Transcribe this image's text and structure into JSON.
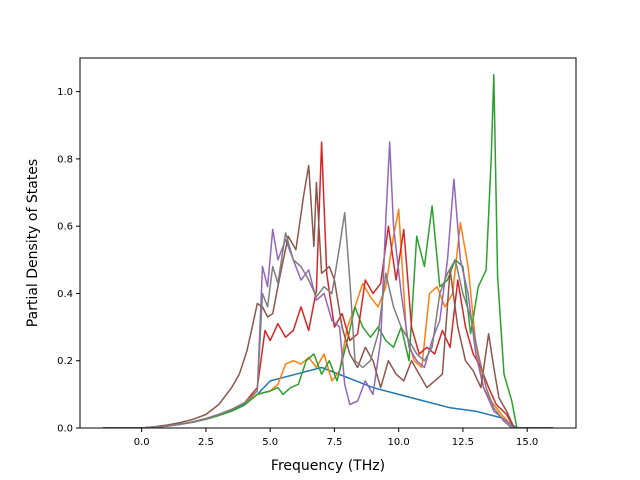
{
  "chart_data": {
    "type": "line",
    "xlabel": "Frequency (THz)",
    "ylabel": "Partial Density of States",
    "xlim": [
      -2.4,
      16.9
    ],
    "ylim": [
      0.0,
      1.1
    ],
    "x_ticks": [
      0.0,
      2.5,
      5.0,
      7.5,
      10.0,
      12.5,
      15.0
    ],
    "x_tick_labels": [
      "0.0",
      "2.5",
      "5.0",
      "7.5",
      "10.0",
      "12.5",
      "15.0"
    ],
    "y_ticks": [
      0.0,
      0.2,
      0.4,
      0.6,
      0.8,
      1.0
    ],
    "y_tick_labels": [
      "0.0",
      "0.2",
      "0.4",
      "0.6",
      "0.8",
      "1.0"
    ],
    "grid": false,
    "series": [
      {
        "color": "#1f77b4",
        "points": [
          [
            -1.5,
            0.0
          ],
          [
            0.0,
            0.0
          ],
          [
            0.5,
            0.003
          ],
          [
            1.0,
            0.006
          ],
          [
            1.5,
            0.011
          ],
          [
            2.0,
            0.018
          ],
          [
            2.5,
            0.027
          ],
          [
            3.0,
            0.038
          ],
          [
            3.5,
            0.051
          ],
          [
            4.0,
            0.07
          ],
          [
            4.5,
            0.1
          ],
          [
            5.0,
            0.14
          ],
          [
            6.0,
            0.16
          ],
          [
            7.0,
            0.18
          ],
          [
            8.0,
            0.15
          ],
          [
            9.0,
            0.12
          ],
          [
            10.0,
            0.1
          ],
          [
            11.0,
            0.08
          ],
          [
            12.0,
            0.06
          ],
          [
            13.0,
            0.05
          ],
          [
            14.0,
            0.03
          ],
          [
            14.6,
            0.0
          ],
          [
            16.0,
            0.0
          ]
        ]
      },
      {
        "color": "#ff7f0e",
        "points": [
          [
            -1.5,
            0.0
          ],
          [
            0.0,
            0.0
          ],
          [
            0.5,
            0.003
          ],
          [
            1.0,
            0.006
          ],
          [
            1.5,
            0.011
          ],
          [
            2.0,
            0.018
          ],
          [
            2.5,
            0.028
          ],
          [
            3.0,
            0.04
          ],
          [
            3.5,
            0.055
          ],
          [
            4.0,
            0.075
          ],
          [
            4.5,
            0.1
          ],
          [
            5.0,
            0.11
          ],
          [
            5.3,
            0.13
          ],
          [
            5.6,
            0.19
          ],
          [
            5.9,
            0.2
          ],
          [
            6.2,
            0.19
          ],
          [
            6.5,
            0.21
          ],
          [
            6.8,
            0.18
          ],
          [
            7.1,
            0.22
          ],
          [
            7.4,
            0.14
          ],
          [
            7.7,
            0.17
          ],
          [
            8.0,
            0.3
          ],
          [
            8.3,
            0.36
          ],
          [
            8.6,
            0.43
          ],
          [
            8.9,
            0.39
          ],
          [
            9.2,
            0.36
          ],
          [
            9.5,
            0.42
          ],
          [
            9.8,
            0.57
          ],
          [
            10.0,
            0.65
          ],
          [
            10.3,
            0.28
          ],
          [
            10.6,
            0.2
          ],
          [
            10.9,
            0.18
          ],
          [
            11.2,
            0.4
          ],
          [
            11.5,
            0.42
          ],
          [
            11.8,
            0.36
          ],
          [
            12.1,
            0.4
          ],
          [
            12.4,
            0.61
          ],
          [
            12.7,
            0.48
          ],
          [
            13.0,
            0.25
          ],
          [
            13.3,
            0.12
          ],
          [
            13.6,
            0.08
          ],
          [
            14.0,
            0.04
          ],
          [
            14.5,
            0.0
          ],
          [
            16.0,
            0.0
          ]
        ]
      },
      {
        "color": "#2ca02c",
        "points": [
          [
            -1.5,
            0.0
          ],
          [
            0.0,
            0.0
          ],
          [
            0.5,
            0.003
          ],
          [
            1.0,
            0.006
          ],
          [
            1.5,
            0.011
          ],
          [
            2.0,
            0.017
          ],
          [
            2.5,
            0.026
          ],
          [
            3.0,
            0.037
          ],
          [
            3.5,
            0.05
          ],
          [
            4.0,
            0.068
          ],
          [
            4.5,
            0.1
          ],
          [
            5.0,
            0.11
          ],
          [
            5.3,
            0.12
          ],
          [
            5.5,
            0.1
          ],
          [
            5.8,
            0.12
          ],
          [
            6.1,
            0.13
          ],
          [
            6.4,
            0.2
          ],
          [
            6.7,
            0.22
          ],
          [
            7.0,
            0.16
          ],
          [
            7.3,
            0.2
          ],
          [
            7.6,
            0.14
          ],
          [
            8.0,
            0.26
          ],
          [
            8.3,
            0.36
          ],
          [
            8.6,
            0.3
          ],
          [
            8.9,
            0.27
          ],
          [
            9.2,
            0.3
          ],
          [
            9.5,
            0.26
          ],
          [
            9.8,
            0.24
          ],
          [
            10.1,
            0.3
          ],
          [
            10.4,
            0.2
          ],
          [
            10.7,
            0.57
          ],
          [
            11.0,
            0.48
          ],
          [
            11.3,
            0.66
          ],
          [
            11.6,
            0.42
          ],
          [
            11.9,
            0.44
          ],
          [
            12.2,
            0.5
          ],
          [
            12.5,
            0.48
          ],
          [
            12.8,
            0.28
          ],
          [
            13.1,
            0.42
          ],
          [
            13.4,
            0.47
          ],
          [
            13.6,
            0.8
          ],
          [
            13.7,
            1.05
          ],
          [
            13.85,
            0.45
          ],
          [
            14.1,
            0.16
          ],
          [
            14.4,
            0.08
          ],
          [
            14.6,
            0.0
          ],
          [
            16.0,
            0.0
          ]
        ]
      },
      {
        "color": "#d62728",
        "points": [
          [
            -1.5,
            0.0
          ],
          [
            0.0,
            0.0
          ],
          [
            0.5,
            0.003
          ],
          [
            1.0,
            0.006
          ],
          [
            1.5,
            0.011
          ],
          [
            2.0,
            0.018
          ],
          [
            2.5,
            0.028
          ],
          [
            3.0,
            0.04
          ],
          [
            3.5,
            0.055
          ],
          [
            4.0,
            0.075
          ],
          [
            4.5,
            0.12
          ],
          [
            4.8,
            0.29
          ],
          [
            5.0,
            0.26
          ],
          [
            5.3,
            0.31
          ],
          [
            5.6,
            0.27
          ],
          [
            5.9,
            0.29
          ],
          [
            6.2,
            0.36
          ],
          [
            6.5,
            0.29
          ],
          [
            6.8,
            0.41
          ],
          [
            7.0,
            0.85
          ],
          [
            7.2,
            0.46
          ],
          [
            7.5,
            0.3
          ],
          [
            7.8,
            0.34
          ],
          [
            8.1,
            0.26
          ],
          [
            8.4,
            0.28
          ],
          [
            8.7,
            0.44
          ],
          [
            9.0,
            0.4
          ],
          [
            9.3,
            0.43
          ],
          [
            9.6,
            0.6
          ],
          [
            9.9,
            0.44
          ],
          [
            10.2,
            0.59
          ],
          [
            10.5,
            0.3
          ],
          [
            10.8,
            0.22
          ],
          [
            11.1,
            0.24
          ],
          [
            11.4,
            0.22
          ],
          [
            11.7,
            0.29
          ],
          [
            12.0,
            0.24
          ],
          [
            12.3,
            0.44
          ],
          [
            12.6,
            0.3
          ],
          [
            12.9,
            0.22
          ],
          [
            13.2,
            0.18
          ],
          [
            13.5,
            0.12
          ],
          [
            13.8,
            0.07
          ],
          [
            14.2,
            0.04
          ],
          [
            14.5,
            0.0
          ],
          [
            16.0,
            0.0
          ]
        ]
      },
      {
        "color": "#9467bd",
        "points": [
          [
            -1.5,
            0.0
          ],
          [
            0.0,
            0.0
          ],
          [
            0.5,
            0.003
          ],
          [
            1.0,
            0.006
          ],
          [
            1.5,
            0.011
          ],
          [
            2.0,
            0.018
          ],
          [
            2.5,
            0.028
          ],
          [
            3.0,
            0.04
          ],
          [
            3.5,
            0.055
          ],
          [
            4.0,
            0.075
          ],
          [
            4.5,
            0.11
          ],
          [
            4.7,
            0.48
          ],
          [
            4.9,
            0.42
          ],
          [
            5.1,
            0.59
          ],
          [
            5.3,
            0.5
          ],
          [
            5.6,
            0.56
          ],
          [
            5.9,
            0.5
          ],
          [
            6.2,
            0.44
          ],
          [
            6.5,
            0.47
          ],
          [
            6.8,
            0.38
          ],
          [
            7.1,
            0.4
          ],
          [
            7.4,
            0.32
          ],
          [
            7.7,
            0.3
          ],
          [
            7.9,
            0.13
          ],
          [
            8.1,
            0.07
          ],
          [
            8.4,
            0.08
          ],
          [
            8.7,
            0.14
          ],
          [
            9.0,
            0.1
          ],
          [
            9.3,
            0.26
          ],
          [
            9.5,
            0.62
          ],
          [
            9.65,
            0.85
          ],
          [
            9.8,
            0.6
          ],
          [
            10.1,
            0.4
          ],
          [
            10.4,
            0.24
          ],
          [
            10.7,
            0.2
          ],
          [
            11.0,
            0.18
          ],
          [
            11.3,
            0.26
          ],
          [
            11.6,
            0.32
          ],
          [
            11.9,
            0.5
          ],
          [
            12.15,
            0.74
          ],
          [
            12.4,
            0.5
          ],
          [
            12.7,
            0.4
          ],
          [
            13.0,
            0.22
          ],
          [
            13.3,
            0.12
          ],
          [
            13.7,
            0.05
          ],
          [
            14.2,
            0.02
          ],
          [
            14.5,
            0.0
          ],
          [
            16.0,
            0.0
          ]
        ]
      },
      {
        "color": "#8c564b",
        "points": [
          [
            -1.5,
            0.0
          ],
          [
            0.0,
            0.0
          ],
          [
            0.5,
            0.004
          ],
          [
            1.0,
            0.009
          ],
          [
            1.5,
            0.016
          ],
          [
            2.0,
            0.026
          ],
          [
            2.5,
            0.04
          ],
          [
            3.0,
            0.07
          ],
          [
            3.5,
            0.12
          ],
          [
            3.8,
            0.16
          ],
          [
            4.1,
            0.23
          ],
          [
            4.3,
            0.3
          ],
          [
            4.5,
            0.37
          ],
          [
            4.7,
            0.36
          ],
          [
            4.9,
            0.33
          ],
          [
            5.1,
            0.34
          ],
          [
            5.4,
            0.46
          ],
          [
            5.7,
            0.57
          ],
          [
            6.0,
            0.53
          ],
          [
            6.3,
            0.69
          ],
          [
            6.5,
            0.78
          ],
          [
            6.7,
            0.54
          ],
          [
            6.8,
            0.73
          ],
          [
            7.0,
            0.46
          ],
          [
            7.3,
            0.48
          ],
          [
            7.5,
            0.44
          ],
          [
            7.8,
            0.3
          ],
          [
            8.1,
            0.22
          ],
          [
            8.4,
            0.18
          ],
          [
            8.7,
            0.24
          ],
          [
            9.0,
            0.2
          ],
          [
            9.3,
            0.12
          ],
          [
            9.6,
            0.2
          ],
          [
            9.9,
            0.16
          ],
          [
            10.2,
            0.14
          ],
          [
            10.5,
            0.2
          ],
          [
            10.8,
            0.16
          ],
          [
            11.1,
            0.12
          ],
          [
            11.4,
            0.14
          ],
          [
            11.7,
            0.16
          ],
          [
            12.0,
            0.47
          ],
          [
            12.3,
            0.3
          ],
          [
            12.6,
            0.2
          ],
          [
            12.9,
            0.17
          ],
          [
            13.2,
            0.12
          ],
          [
            13.5,
            0.28
          ],
          [
            13.7,
            0.18
          ],
          [
            13.9,
            0.09
          ],
          [
            14.2,
            0.05
          ],
          [
            14.5,
            0.0
          ],
          [
            16.0,
            0.0
          ]
        ]
      },
      {
        "color": "#7f7f7f",
        "points": [
          [
            -1.5,
            0.0
          ],
          [
            0.0,
            0.0
          ],
          [
            0.5,
            0.003
          ],
          [
            1.0,
            0.006
          ],
          [
            1.5,
            0.011
          ],
          [
            2.0,
            0.018
          ],
          [
            2.5,
            0.028
          ],
          [
            3.0,
            0.04
          ],
          [
            3.5,
            0.055
          ],
          [
            4.0,
            0.075
          ],
          [
            4.5,
            0.11
          ],
          [
            4.7,
            0.4
          ],
          [
            4.9,
            0.36
          ],
          [
            5.1,
            0.48
          ],
          [
            5.3,
            0.43
          ],
          [
            5.6,
            0.58
          ],
          [
            5.9,
            0.5
          ],
          [
            6.2,
            0.48
          ],
          [
            6.5,
            0.44
          ],
          [
            6.8,
            0.39
          ],
          [
            7.1,
            0.42
          ],
          [
            7.4,
            0.4
          ],
          [
            7.7,
            0.54
          ],
          [
            7.9,
            0.64
          ],
          [
            8.1,
            0.44
          ],
          [
            8.3,
            0.2
          ],
          [
            8.6,
            0.18
          ],
          [
            8.9,
            0.2
          ],
          [
            9.2,
            0.28
          ],
          [
            9.5,
            0.46
          ],
          [
            9.8,
            0.36
          ],
          [
            10.1,
            0.3
          ],
          [
            10.4,
            0.26
          ],
          [
            10.7,
            0.22
          ],
          [
            11.0,
            0.2
          ],
          [
            11.3,
            0.24
          ],
          [
            11.6,
            0.4
          ],
          [
            11.9,
            0.46
          ],
          [
            12.2,
            0.5
          ],
          [
            12.5,
            0.4
          ],
          [
            12.8,
            0.33
          ],
          [
            13.1,
            0.22
          ],
          [
            13.4,
            0.12
          ],
          [
            13.7,
            0.06
          ],
          [
            14.1,
            0.02
          ],
          [
            14.4,
            0.0
          ],
          [
            16.0,
            0.0
          ]
        ]
      }
    ]
  }
}
